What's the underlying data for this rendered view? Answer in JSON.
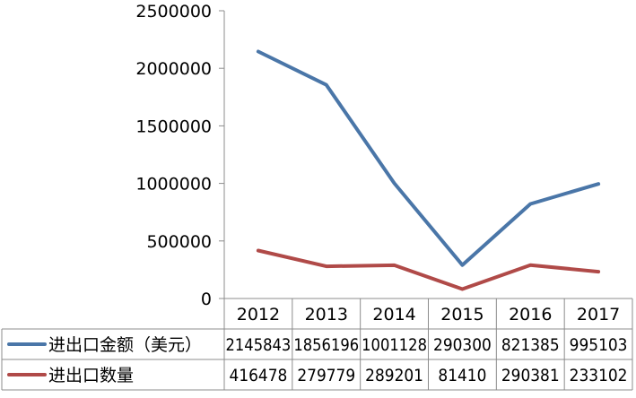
{
  "chart_data": {
    "type": "line",
    "categories": [
      "2012",
      "2013",
      "2014",
      "2015",
      "2016",
      "2017"
    ],
    "series": [
      {
        "name": "进出口金额（美元）",
        "values": [
          2145843,
          1856196,
          1001128,
          290300,
          821385,
          995103
        ],
        "color": "#4a76a8"
      },
      {
        "name": "进出口数量",
        "values": [
          416478,
          279779,
          289201,
          81410,
          290381,
          233102
        ],
        "color": "#b04a48"
      }
    ],
    "ylim": [
      0,
      2500000
    ],
    "yticks": [
      "0",
      "500000",
      "1000000",
      "1500000",
      "2000000",
      "2500000"
    ],
    "ytick_values": [
      0,
      500000,
      1000000,
      1500000,
      2000000,
      2500000
    ],
    "legend_placement": "data-table-below",
    "grid": false
  }
}
